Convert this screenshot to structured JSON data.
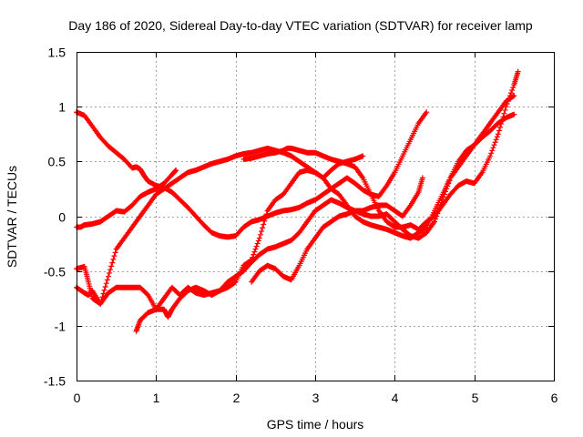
{
  "chart_data": {
    "type": "scatter",
    "title": "Day 186 of 2020, Sidereal Day-to-day VTEC variation (SDTVAR) for receiver lamp",
    "xlabel": "GPS time / hours",
    "ylabel": "SDTVAR / TECUs",
    "xlim": [
      0,
      6
    ],
    "ylim": [
      -1.5,
      1.5
    ],
    "xticks": [
      "0",
      "1",
      "2",
      "3",
      "4",
      "5",
      "6"
    ],
    "yticks": [
      "1.5",
      "1",
      "0.5",
      "0",
      "-0.5",
      "-1",
      "-1.5"
    ],
    "grid": true,
    "legend": "none",
    "marker": "plus",
    "color": "#ff0000",
    "series": [
      {
        "x": [
          0.0,
          0.1,
          0.2,
          0.3,
          0.4,
          0.5,
          0.6,
          0.7,
          0.75,
          0.8,
          0.85,
          0.9,
          1.0,
          1.1,
          1.2,
          1.3,
          1.4,
          1.5,
          1.6,
          1.7,
          1.8,
          1.9,
          2.0,
          2.1,
          2.2,
          2.3,
          2.4,
          2.5,
          2.6,
          2.7,
          2.8,
          2.9,
          3.0,
          3.1,
          3.2,
          3.3,
          3.4,
          3.5,
          3.6,
          3.7,
          3.8,
          3.9,
          4.0,
          4.1,
          4.2,
          4.3,
          4.4
        ],
        "y": [
          0.95,
          0.92,
          0.82,
          0.72,
          0.64,
          0.58,
          0.52,
          0.44,
          0.45,
          0.43,
          0.37,
          0.32,
          0.28,
          0.26,
          0.22,
          0.15,
          0.08,
          0.0,
          -0.08,
          -0.15,
          -0.18,
          -0.19,
          -0.18,
          -0.1,
          -0.05,
          -0.03,
          0.0,
          0.03,
          0.05,
          0.06,
          0.08,
          0.12,
          0.15,
          0.2,
          0.25,
          0.3,
          0.35,
          0.3,
          0.24,
          0.2,
          0.18,
          0.28,
          0.4,
          0.55,
          0.7,
          0.85,
          0.95
        ]
      },
      {
        "x": [
          0.0,
          0.05,
          0.1,
          0.2,
          0.3,
          0.4,
          0.5,
          0.6,
          0.7,
          0.8,
          0.9,
          1.0,
          1.1,
          1.2,
          1.25
        ],
        "y": -0.1,
        "yv": [
          -0.1,
          -0.1,
          -0.08,
          -0.07,
          -0.05,
          0.0,
          0.05,
          0.04,
          0.1,
          0.18,
          0.22,
          0.25,
          0.3,
          0.38,
          0.42
        ]
      },
      {
        "x": [
          0.0,
          0.1,
          0.15,
          0.2,
          0.3,
          0.4,
          0.5,
          0.6,
          0.7,
          0.8,
          0.9,
          1.0,
          1.1,
          1.2,
          1.3,
          1.4,
          1.5,
          1.6,
          1.7,
          1.8,
          1.9,
          2.0,
          2.1,
          2.2,
          2.3,
          2.4,
          2.5,
          2.6,
          2.7,
          2.8,
          2.9,
          3.0,
          3.1,
          3.2,
          3.3,
          3.4,
          3.5,
          3.6
        ],
        "yv": [
          -0.48,
          -0.46,
          -0.6,
          -0.75,
          -0.8,
          -0.7,
          -0.65,
          -0.65,
          -0.65,
          -0.65,
          -0.72,
          -0.85,
          -0.75,
          -0.65,
          -0.72,
          -0.65,
          -0.7,
          -0.72,
          -0.7,
          -0.68,
          -0.65,
          -0.6,
          -0.45,
          -0.4,
          -0.2,
          0.05,
          0.15,
          0.2,
          0.3,
          0.4,
          0.42,
          0.4,
          0.35,
          0.42,
          0.48,
          0.5,
          0.52,
          0.55
        ]
      },
      {
        "x": [
          0.0,
          0.1,
          0.15,
          0.2,
          0.3,
          0.4,
          0.5,
          0.6,
          0.7,
          0.8,
          0.9,
          1.0,
          1.1,
          1.2,
          1.3,
          1.4,
          1.5,
          1.6,
          1.7,
          1.8,
          1.9,
          2.0,
          2.1,
          2.2,
          2.3,
          2.4,
          2.5,
          2.6,
          2.7,
          2.8,
          2.9,
          3.0,
          3.1,
          3.2,
          3.3,
          3.4,
          3.5,
          3.6,
          3.7,
          3.8,
          3.9,
          4.0,
          4.1,
          4.2,
          4.3,
          4.4,
          4.5,
          4.6,
          4.7,
          4.8,
          4.9,
          5.0,
          5.1,
          5.2,
          5.3,
          5.4,
          5.5
        ],
        "yv": [
          -0.65,
          -0.7,
          -0.72,
          -0.68,
          -0.8,
          -0.55,
          -0.3,
          -0.2,
          -0.1,
          0.0,
          0.1,
          0.2,
          0.25,
          0.3,
          0.35,
          0.4,
          0.42,
          0.45,
          0.48,
          0.5,
          0.52,
          0.55,
          0.57,
          0.58,
          0.6,
          0.62,
          0.6,
          0.58,
          0.55,
          0.5,
          0.45,
          0.4,
          0.35,
          0.25,
          0.2,
          0.1,
          0.0,
          -0.05,
          -0.08,
          -0.1,
          -0.12,
          -0.15,
          -0.18,
          -0.2,
          -0.15,
          -0.1,
          0.05,
          0.2,
          0.35,
          0.45,
          0.55,
          0.65,
          0.75,
          0.85,
          0.95,
          1.05,
          1.1
        ]
      },
      {
        "x": [
          0.75,
          0.8,
          0.9,
          1.0,
          1.1,
          1.15,
          1.2,
          1.3,
          1.4,
          1.5,
          1.6,
          1.7,
          1.8,
          1.9,
          2.0,
          2.1,
          2.2,
          2.3,
          2.4,
          2.5,
          2.6,
          2.7,
          2.8,
          2.9,
          3.0,
          3.1,
          3.2,
          3.3,
          3.4,
          3.5,
          3.6,
          3.7,
          3.8,
          3.9,
          4.0,
          4.1,
          4.2,
          4.3,
          4.4,
          4.5,
          4.6,
          4.7,
          4.8,
          4.9,
          5.0,
          5.1,
          5.2,
          5.3,
          5.4,
          5.5
        ],
        "yv": [
          -1.05,
          -0.95,
          -0.88,
          -0.85,
          -0.85,
          -0.92,
          -0.85,
          -0.75,
          -0.68,
          -0.65,
          -0.68,
          -0.72,
          -0.68,
          -0.6,
          -0.55,
          -0.5,
          -0.42,
          -0.35,
          -0.3,
          -0.28,
          -0.25,
          -0.22,
          -0.15,
          -0.05,
          0.05,
          0.1,
          0.15,
          0.12,
          0.08,
          0.05,
          0.02,
          0.0,
          0.0,
          0.02,
          -0.05,
          -0.12,
          -0.18,
          -0.2,
          -0.15,
          -0.05,
          0.15,
          0.35,
          0.5,
          0.6,
          0.65,
          0.72,
          0.78,
          0.85,
          0.9,
          0.93
        ]
      },
      {
        "x": [
          2.1,
          2.2,
          2.3,
          2.4,
          2.5,
          2.6,
          2.65,
          2.7,
          2.8,
          2.9,
          3.0,
          3.1,
          3.2,
          3.3,
          3.4,
          3.5,
          3.6,
          3.7,
          3.8,
          3.9,
          4.0,
          4.1,
          4.2,
          4.3,
          4.4,
          4.5,
          4.6,
          4.7,
          4.8,
          4.9,
          5.0,
          5.1,
          5.2,
          5.3,
          5.4,
          5.5,
          5.55
        ],
        "yv": [
          0.52,
          0.53,
          0.55,
          0.57,
          0.58,
          0.6,
          0.62,
          0.62,
          0.6,
          0.58,
          0.58,
          0.55,
          0.52,
          0.5,
          0.48,
          0.45,
          0.35,
          0.2,
          0.05,
          -0.05,
          -0.1,
          -0.1,
          -0.08,
          -0.12,
          -0.05,
          0.0,
          0.1,
          0.2,
          0.28,
          0.32,
          0.3,
          0.4,
          0.55,
          0.75,
          1.0,
          1.2,
          1.32
        ]
      },
      {
        "x": [
          2.2,
          2.3,
          2.4,
          2.5,
          2.6,
          2.7,
          2.8,
          2.9,
          3.0,
          3.1,
          3.2,
          3.3,
          3.4,
          3.5,
          3.6,
          3.7,
          3.8,
          3.9,
          4.0,
          4.1,
          4.2,
          4.3,
          4.35
        ],
        "yv": [
          -0.6,
          -0.5,
          -0.45,
          -0.48,
          -0.55,
          -0.58,
          -0.45,
          -0.3,
          -0.2,
          -0.1,
          -0.05,
          0.0,
          0.02,
          0.05,
          0.05,
          0.08,
          0.1,
          0.1,
          0.05,
          0.0,
          0.1,
          0.22,
          0.35
        ]
      }
    ]
  }
}
